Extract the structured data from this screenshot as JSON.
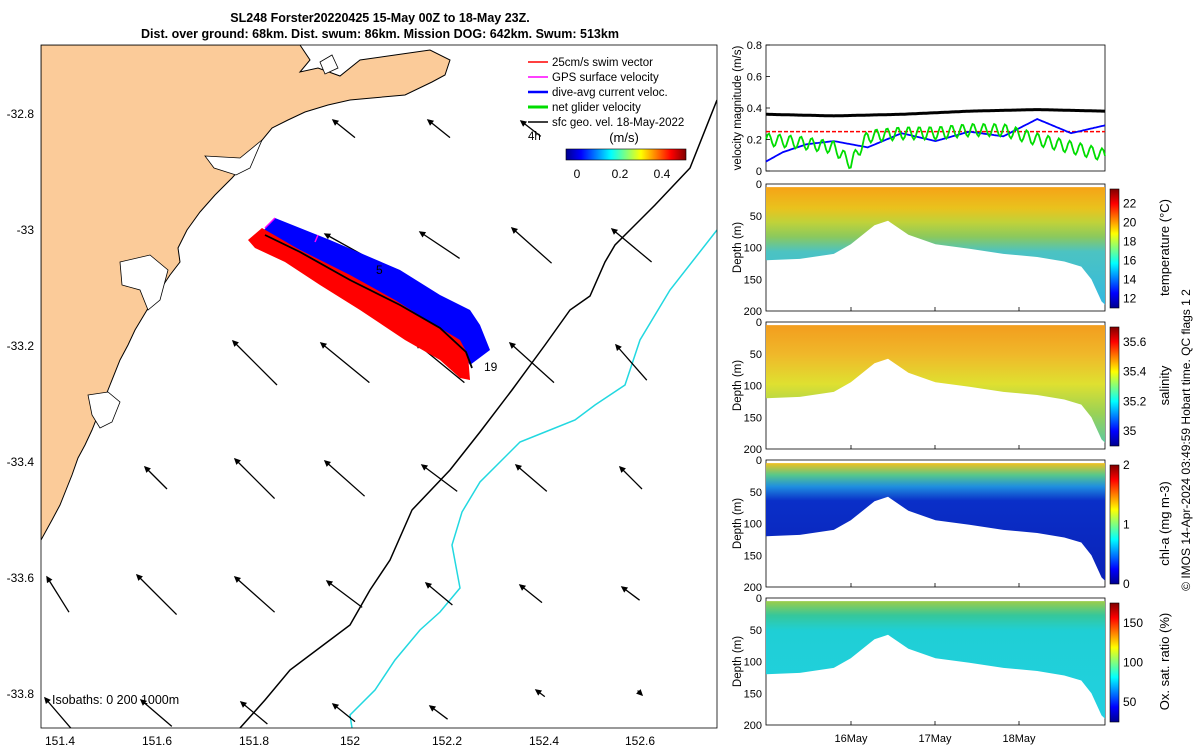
{
  "title": {
    "line1": "SL248 Forster20220425 15-May 00Z to 18-May 23Z.",
    "line2": "Dist. over ground: 68km. Dist. swum: 86km. Mission DOG: 642km. Swum: 513km"
  },
  "side_caption": "© IMOS 14-Apr-2024 03:49:59 Hobart time. QC flags 1  2",
  "map": {
    "lon_ticks": [
      "151.4",
      "151.6",
      "151.8",
      "152",
      "152.2",
      "152.4",
      "152.6"
    ],
    "lat_ticks": [
      "-32.8",
      "-33",
      "-33.2",
      "-33.4",
      "-33.6",
      "-33.8"
    ],
    "legend": [
      "25cm/s swim vector",
      "GPS surface velocity",
      "dive-avg current veloc.",
      "net glider velocity",
      "sfc geo. vel. 18-May-2022"
    ],
    "legend_colors": [
      "#ff0000",
      "#ff00ff",
      "#0000ff",
      "#00dd00",
      "#000000"
    ],
    "time_label": "4h",
    "colorbar_label": "(m/s)",
    "colorbar_ticks": [
      "0",
      "0.2",
      "0.4"
    ],
    "isobaths_label": "Isobaths: 0   200  1000m",
    "track_labels": [
      "5",
      "19"
    ],
    "land_color": "#fbcb99"
  },
  "chart_data": [
    {
      "type": "line",
      "ylabel": "velocity magnitude (m/s)",
      "ylim": [
        0,
        0.8
      ],
      "yticks": [
        "0",
        "0.2",
        "0.4",
        "0.6",
        "0.8"
      ],
      "series": [
        {
          "color": "#000000",
          "t": [
            0,
            0.2,
            0.4,
            0.6,
            0.8,
            1
          ],
          "values": [
            0.36,
            0.35,
            0.36,
            0.38,
            0.39,
            0.38
          ]
        },
        {
          "color": "#ff0000",
          "t": [
            0,
            1
          ],
          "values": [
            0.25,
            0.25
          ]
        },
        {
          "color": "#0000ff",
          "t": [
            0,
            0.05,
            0.12,
            0.2,
            0.3,
            0.4,
            0.5,
            0.6,
            0.7,
            0.8,
            0.9,
            1
          ],
          "values": [
            0.06,
            0.12,
            0.17,
            0.19,
            0.15,
            0.24,
            0.19,
            0.25,
            0.22,
            0.33,
            0.24,
            0.29
          ]
        },
        {
          "color": "#00dd00",
          "t": [
            0,
            0.1,
            0.2,
            0.25,
            0.3,
            0.4,
            0.5,
            0.6,
            0.7,
            0.8,
            0.9,
            1
          ],
          "values": [
            0.2,
            0.18,
            0.15,
            0.05,
            0.22,
            0.24,
            0.24,
            0.26,
            0.26,
            0.2,
            0.15,
            0.1
          ]
        }
      ]
    },
    {
      "type": "heatmap",
      "ylabel": "Depth (m)",
      "cbar_label": "temperature (°C)",
      "cbar_ticks": [
        "12",
        "14",
        "16",
        "18",
        "20",
        "22"
      ],
      "cbar_range": [
        11,
        23.5
      ],
      "yticks": [
        "0",
        "50",
        "100",
        "150",
        "200"
      ],
      "ylim": [
        0,
        200
      ]
    },
    {
      "type": "heatmap",
      "ylabel": "Depth (m)",
      "cbar_label": "salinity",
      "cbar_ticks": [
        "35",
        "35.2",
        "35.4",
        "35.6"
      ],
      "cbar_range": [
        34.9,
        35.7
      ],
      "yticks": [
        "0",
        "50",
        "100",
        "150",
        "200"
      ],
      "ylim": [
        0,
        200
      ]
    },
    {
      "type": "heatmap",
      "ylabel": "Depth (m)",
      "cbar_label": "chl-a (mg m-3)",
      "cbar_ticks": [
        "0",
        "1",
        "2"
      ],
      "cbar_range": [
        0,
        2
      ],
      "yticks": [
        "0",
        "50",
        "100",
        "150",
        "200"
      ],
      "ylim": [
        0,
        200
      ]
    },
    {
      "type": "heatmap",
      "ylabel": "Depth (m)",
      "cbar_label": "Ox. sat. ratio (%)",
      "cbar_ticks": [
        "50",
        "100",
        "150"
      ],
      "cbar_range": [
        25,
        175
      ],
      "yticks": [
        "0",
        "50",
        "100",
        "150",
        "200"
      ],
      "ylim": [
        0,
        200
      ]
    }
  ],
  "time_axis": {
    "ticks": [
      "16May",
      "17May",
      "18May"
    ]
  }
}
